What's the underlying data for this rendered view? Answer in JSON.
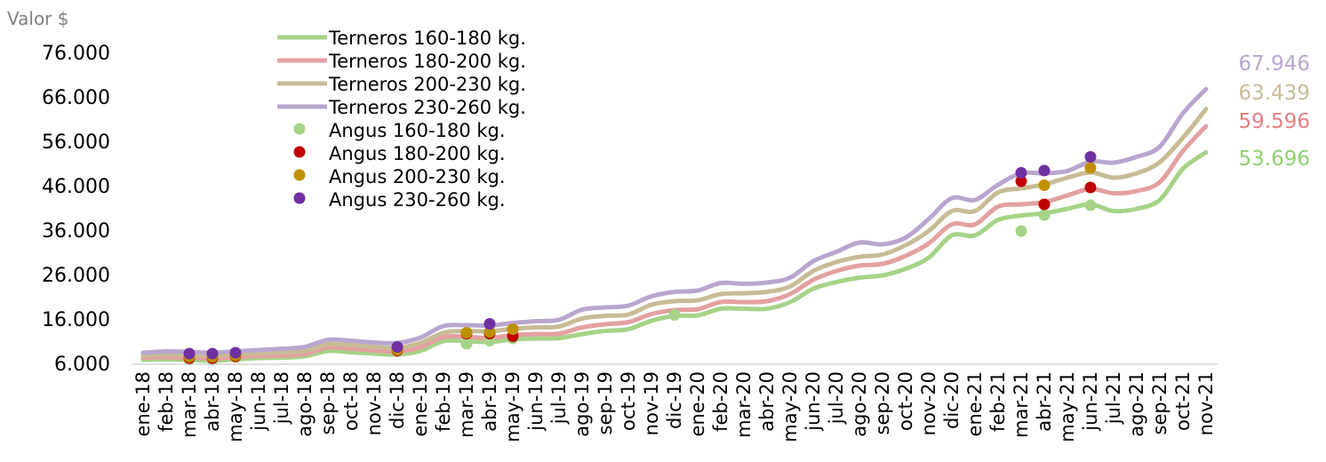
{
  "chart_data": {
    "type": "line",
    "ylabel": "Valor $",
    "ylim": [
      6000,
      76000
    ],
    "yticks": [
      6000,
      16000,
      26000,
      36000,
      46000,
      56000,
      66000,
      76000
    ],
    "ytick_labels": [
      "6.000",
      "16.000",
      "26.000",
      "36.000",
      "46.000",
      "56.000",
      "66.000",
      "76.000"
    ],
    "categories": [
      "ene-18",
      "feb-18",
      "mar-18",
      "abr-18",
      "may-18",
      "jun-18",
      "jul-18",
      "ago-18",
      "sep-18",
      "oct-18",
      "nov-18",
      "dic-18",
      "ene-19",
      "feb-19",
      "mar-19",
      "abr-19",
      "may-19",
      "jun-19",
      "jul-19",
      "ago-19",
      "sep-19",
      "oct-19",
      "nov-19",
      "dic-19",
      "ene-20",
      "feb-20",
      "mar-20",
      "abr-20",
      "may-20",
      "jun-20",
      "jul-20",
      "ago-20",
      "sep-20",
      "oct-20",
      "nov-20",
      "dic-20",
      "ene-21",
      "feb-21",
      "mar-21",
      "abr-21",
      "may-21",
      "jun-21",
      "jul-21",
      "ago-21",
      "sep-21",
      "oct-21",
      "nov-21"
    ],
    "series": [
      {
        "name": "Terneros 160-180 kg.",
        "kind": "line",
        "color": "#a6d388",
        "values": [
          7000,
          7100,
          7000,
          6800,
          7100,
          7400,
          7500,
          7800,
          9000,
          8700,
          8400,
          8200,
          9000,
          11200,
          11200,
          11000,
          11600,
          11800,
          11900,
          12800,
          13500,
          13900,
          15800,
          16900,
          17000,
          18500,
          18500,
          18500,
          20000,
          23000,
          24500,
          25500,
          26000,
          27500,
          30000,
          35000,
          35000,
          38500,
          39500,
          40000,
          41000,
          42000,
          40500,
          41000,
          43000,
          50000,
          53696
        ]
      },
      {
        "name": "Terneros 180-200 kg.",
        "kind": "line",
        "color": "#e4a0a0",
        "values": [
          7500,
          7600,
          7500,
          7300,
          7600,
          7900,
          8000,
          8300,
          9800,
          9500,
          9100,
          8900,
          9800,
          12100,
          12200,
          11900,
          12600,
          12800,
          12900,
          14300,
          15000,
          15500,
          17300,
          18200,
          18400,
          20000,
          20000,
          20200,
          21800,
          25000,
          27000,
          28200,
          28600,
          30400,
          33200,
          37500,
          37500,
          41500,
          42000,
          42500,
          44000,
          45500,
          44500,
          45000,
          47000,
          54000,
          59596
        ]
      },
      {
        "name": "Terneros 200-230 kg.",
        "kind": "line",
        "color": "#c8bc96",
        "values": [
          8000,
          8200,
          8100,
          7900,
          8200,
          8500,
          8700,
          9000,
          10500,
          10300,
          9900,
          9700,
          10800,
          13100,
          13500,
          13400,
          14000,
          14300,
          14500,
          16300,
          16900,
          17200,
          19400,
          20200,
          20400,
          21800,
          22000,
          22300,
          23500,
          27000,
          29000,
          30200,
          30700,
          32800,
          36000,
          40500,
          40500,
          44700,
          45600,
          46500,
          48000,
          49200,
          48000,
          49000,
          51500,
          57000,
          63439
        ]
      },
      {
        "name": "Terneros 230-260 kg.",
        "kind": "line",
        "color": "#b9a6cf",
        "values": [
          8600,
          8900,
          8800,
          8600,
          8900,
          9200,
          9500,
          9900,
          11500,
          11300,
          10900,
          10800,
          12000,
          14600,
          14800,
          14700,
          15300,
          15700,
          16000,
          18300,
          18800,
          19200,
          21300,
          22300,
          22600,
          24300,
          24100,
          24400,
          25500,
          29200,
          31300,
          33400,
          33000,
          34500,
          38700,
          43400,
          43000,
          46400,
          49000,
          49000,
          49500,
          51600,
          51400,
          52700,
          55000,
          62500,
          67946
        ]
      },
      {
        "name": "Angus 160-180 kg.",
        "kind": "dot",
        "color": "#a6d388",
        "points": [
          [
            2,
            7100
          ],
          [
            3,
            7000
          ],
          [
            4,
            7600
          ],
          [
            11,
            8900
          ],
          [
            14,
            10600
          ],
          [
            15,
            11300
          ],
          [
            16,
            11800
          ],
          [
            23,
            17100
          ],
          [
            38,
            36000
          ],
          [
            39,
            39600
          ],
          [
            41,
            41800
          ]
        ]
      },
      {
        "name": "Angus 180-200 kg.",
        "kind": "dot",
        "color": "#c00000",
        "points": [
          [
            2,
            7400
          ],
          [
            3,
            7400
          ],
          [
            4,
            7800
          ],
          [
            11,
            9100
          ],
          [
            14,
            12900
          ],
          [
            15,
            12900
          ],
          [
            16,
            12300
          ],
          [
            38,
            47200
          ],
          [
            39,
            42000
          ],
          [
            41,
            45800
          ]
        ]
      },
      {
        "name": "Angus 200-230 kg.",
        "kind": "dot",
        "color": "#bf9000",
        "points": [
          [
            2,
            7700
          ],
          [
            3,
            7700
          ],
          [
            4,
            8000
          ],
          [
            11,
            9300
          ],
          [
            14,
            13100
          ],
          [
            15,
            13300
          ],
          [
            16,
            13900
          ],
          [
            39,
            46300
          ],
          [
            41,
            50200
          ]
        ]
      },
      {
        "name": "Angus 230-260 kg.",
        "kind": "dot",
        "color": "#7030a0",
        "points": [
          [
            2,
            8400
          ],
          [
            3,
            8400
          ],
          [
            4,
            8600
          ],
          [
            11,
            9900
          ],
          [
            15,
            15100
          ],
          [
            38,
            49100
          ],
          [
            39,
            49600
          ],
          [
            41,
            52700
          ]
        ]
      }
    ],
    "end_labels": [
      {
        "text": "67.946",
        "color": "#b9a6cf"
      },
      {
        "text": "63.439",
        "color": "#c8bc96"
      },
      {
        "text": "59.596",
        "color": "#e58080"
      },
      {
        "text": "53.696",
        "color": "#92cf70"
      }
    ],
    "legend_position": "top-left",
    "grid": false
  }
}
